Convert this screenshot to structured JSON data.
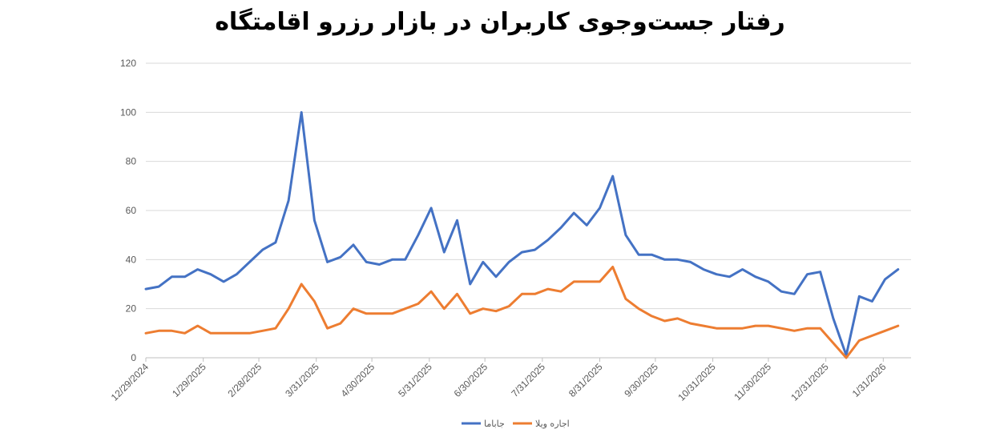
{
  "chart_data": {
    "type": "line",
    "title": "رفتار جست‌وجوی کاربران در بازار رزرو اقامتگاه",
    "ylim": [
      0,
      120
    ],
    "yticks": [
      0,
      20,
      40,
      60,
      80,
      100,
      120
    ],
    "xlim": [
      "2024-12-29",
      "2026-02-15"
    ],
    "xtick_labels": [
      "12/29/2024",
      "1/29/2025",
      "2/28/2025",
      "3/31/2025",
      "4/30/2025",
      "5/31/2025",
      "6/30/2025",
      "7/31/2025",
      "8/31/2025",
      "9/30/2025",
      "10/31/2025",
      "11/30/2025",
      "12/31/2025",
      "1/31/2026"
    ],
    "xtick_dates": [
      "2024-12-29",
      "2025-01-29",
      "2025-02-28",
      "2025-03-31",
      "2025-04-30",
      "2025-05-31",
      "2025-06-30",
      "2025-07-31",
      "2025-08-31",
      "2025-09-30",
      "2025-10-31",
      "2025-11-30",
      "2025-12-31",
      "2026-01-31"
    ],
    "grid": true,
    "legend_position": "bottom",
    "x": [
      "2024-12-29",
      "2025-01-05",
      "2025-01-12",
      "2025-01-19",
      "2025-01-26",
      "2025-02-02",
      "2025-02-09",
      "2025-02-16",
      "2025-02-23",
      "2025-03-02",
      "2025-03-09",
      "2025-03-16",
      "2025-03-23",
      "2025-03-30",
      "2025-04-06",
      "2025-04-13",
      "2025-04-20",
      "2025-04-27",
      "2025-05-04",
      "2025-05-11",
      "2025-05-18",
      "2025-05-25",
      "2025-06-01",
      "2025-06-08",
      "2025-06-15",
      "2025-06-22",
      "2025-06-29",
      "2025-07-06",
      "2025-07-13",
      "2025-07-20",
      "2025-07-27",
      "2025-08-03",
      "2025-08-10",
      "2025-08-17",
      "2025-08-24",
      "2025-08-31",
      "2025-09-07",
      "2025-09-14",
      "2025-09-21",
      "2025-09-28",
      "2025-10-05",
      "2025-10-12",
      "2025-10-19",
      "2025-10-26",
      "2025-11-02",
      "2025-11-09",
      "2025-11-16",
      "2025-11-23",
      "2025-11-30",
      "2025-12-07",
      "2025-12-14",
      "2025-12-21",
      "2025-12-28",
      "2026-01-04",
      "2026-01-11",
      "2026-01-18",
      "2026-01-25",
      "2026-02-01",
      "2026-02-08",
      "2026-02-15"
    ],
    "series": [
      {
        "name": "جاباما",
        "color": "#4472C4",
        "values": [
          28,
          29,
          33,
          33,
          36,
          34,
          31,
          34,
          39,
          44,
          47,
          64,
          100,
          56,
          39,
          41,
          46,
          39,
          38,
          40,
          40,
          50,
          61,
          43,
          56,
          30,
          39,
          33,
          39,
          43,
          44,
          48,
          53,
          59,
          54,
          61,
          74,
          50,
          42,
          42,
          40,
          40,
          39,
          36,
          34,
          33,
          36,
          33,
          31,
          27,
          26,
          34,
          35,
          16,
          1,
          25,
          23,
          32,
          36,
          null
        ]
      },
      {
        "name": "اجاره ویلا",
        "color": "#ED7D31",
        "values": [
          10,
          11,
          11,
          10,
          13,
          10,
          10,
          10,
          10,
          11,
          12,
          20,
          30,
          23,
          12,
          14,
          20,
          18,
          18,
          18,
          20,
          22,
          27,
          20,
          26,
          18,
          20,
          19,
          21,
          26,
          26,
          28,
          27,
          31,
          31,
          31,
          37,
          24,
          20,
          17,
          15,
          16,
          14,
          13,
          12,
          12,
          12,
          13,
          13,
          12,
          11,
          12,
          12,
          6,
          0,
          7,
          9,
          11,
          13,
          null
        ]
      }
    ]
  }
}
